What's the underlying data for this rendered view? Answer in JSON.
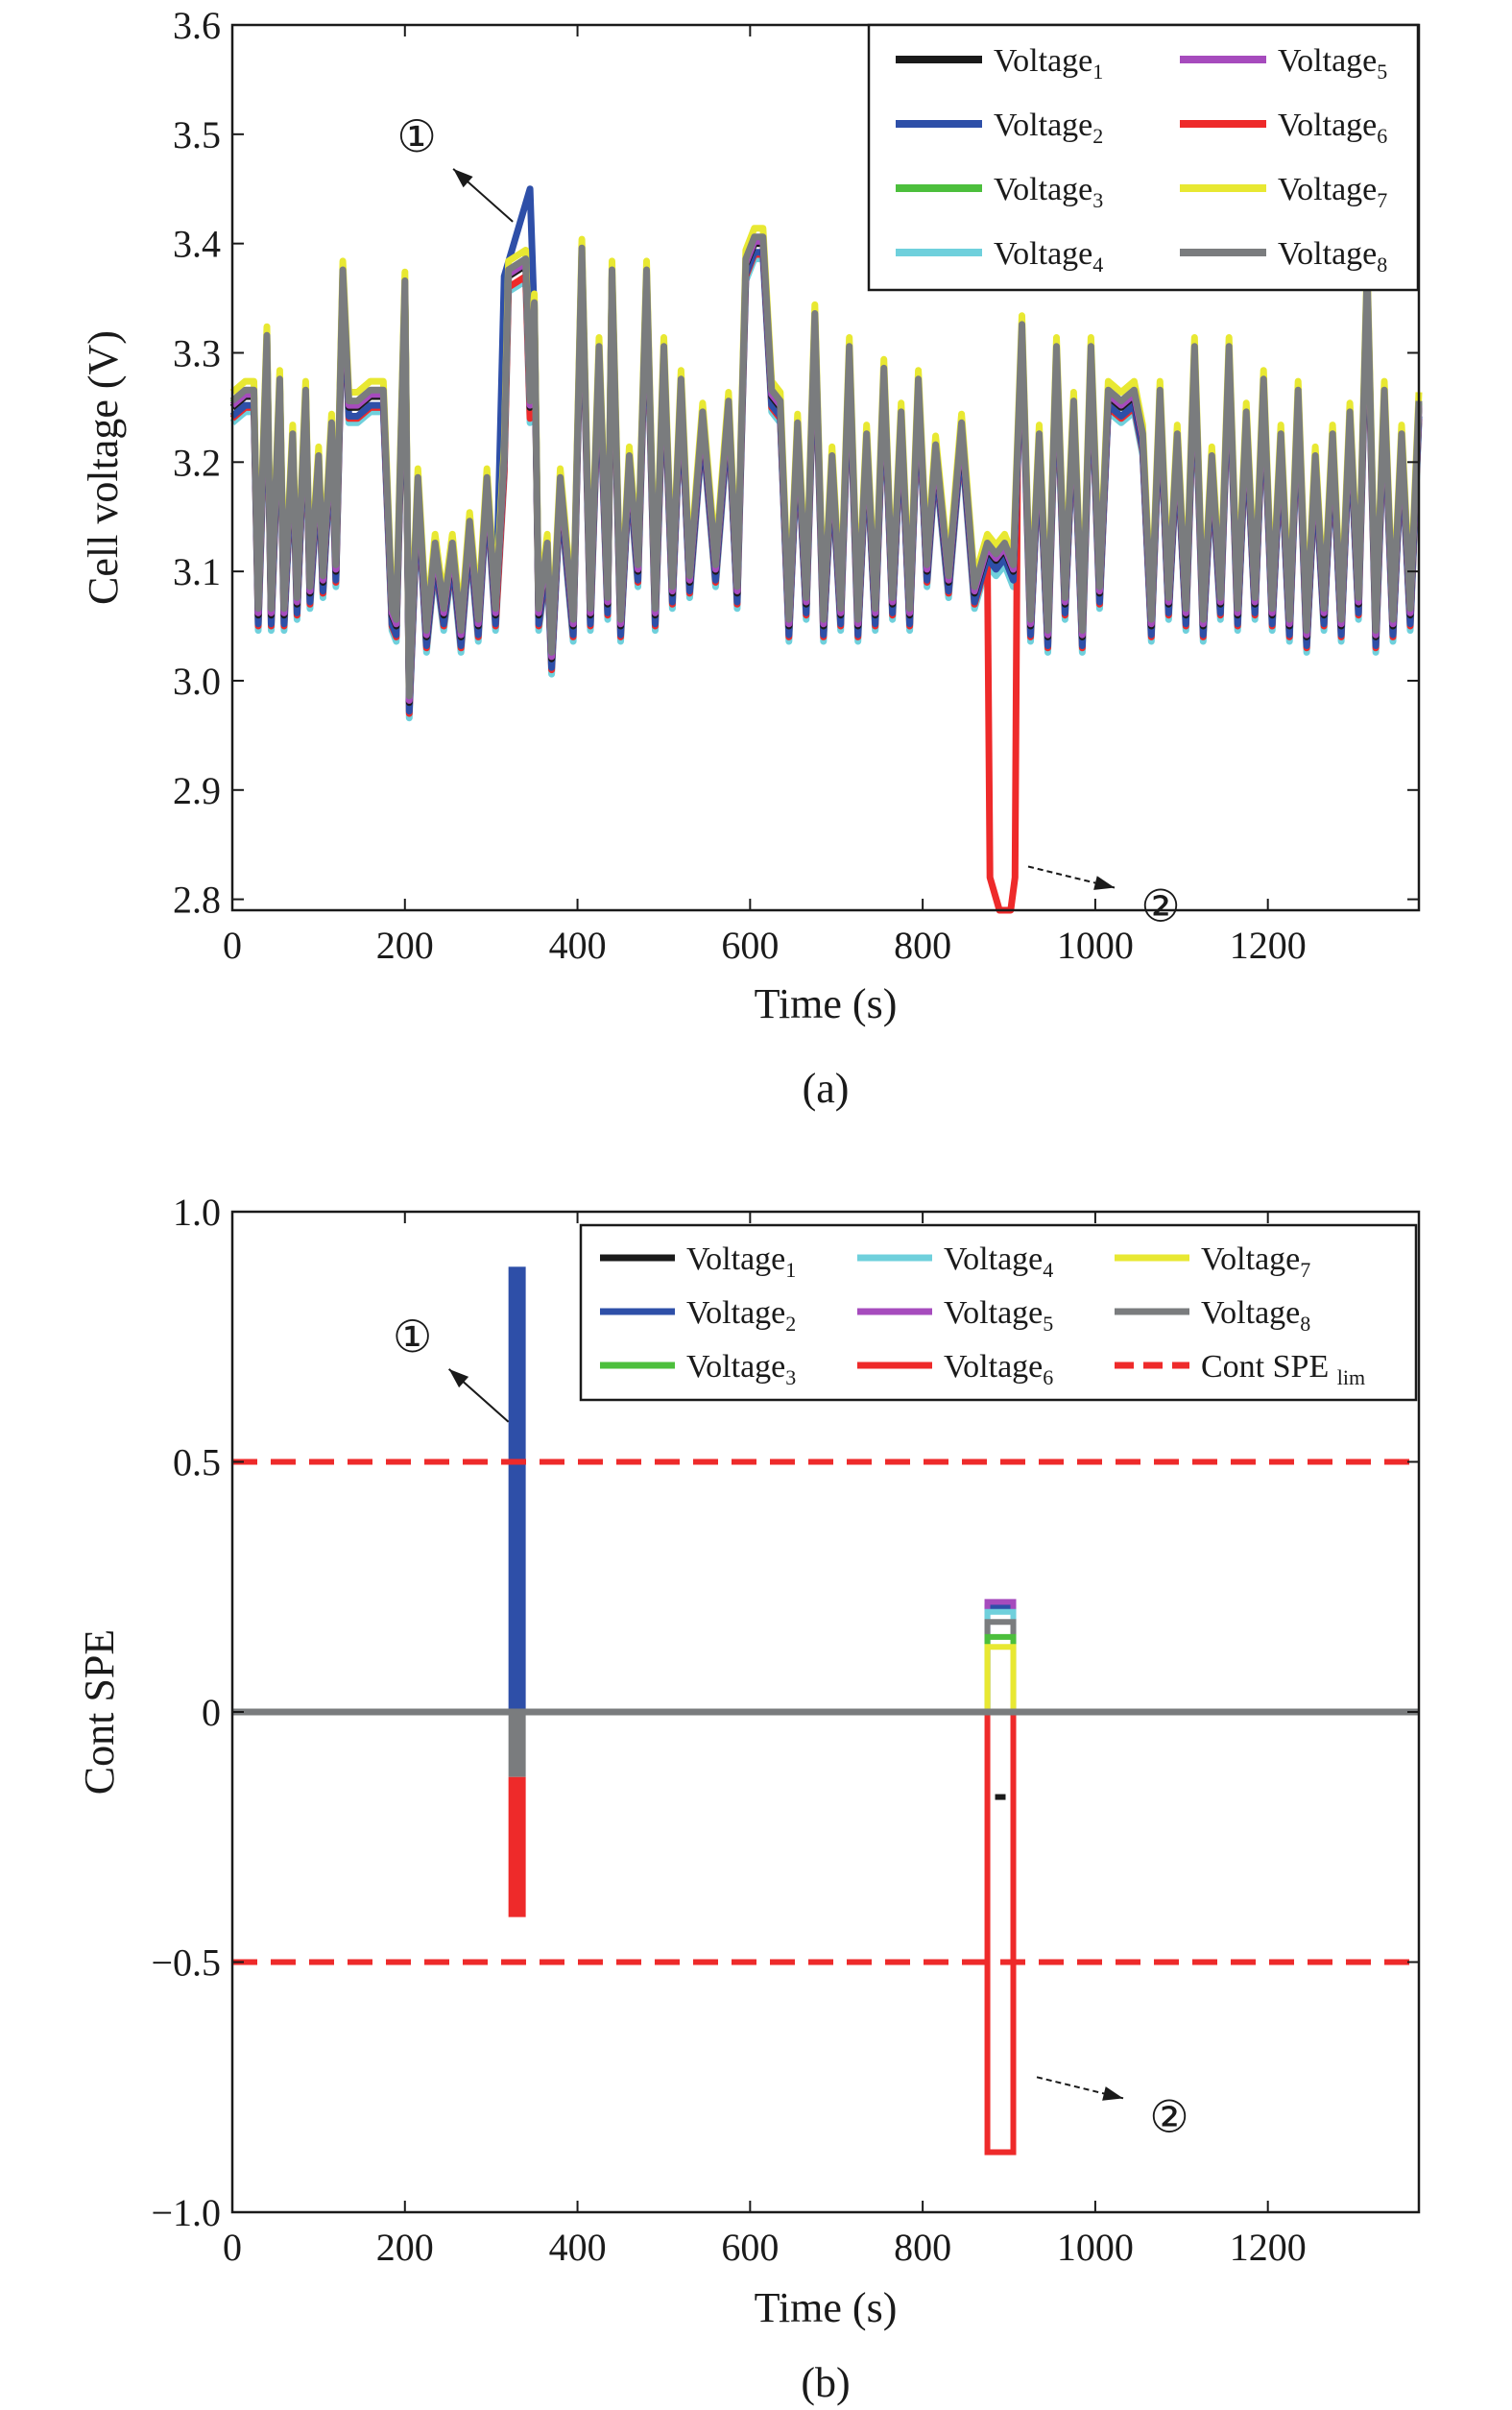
{
  "chart_data": [
    {
      "id": "a",
      "type": "line",
      "caption": "(a)",
      "xlabel": "Time (s)",
      "ylabel": "Cell voltage (V)",
      "xlim": [
        0,
        1375
      ],
      "ylim": [
        2.79,
        3.6
      ],
      "xticks": [
        0,
        200,
        400,
        600,
        800,
        1000,
        1200
      ],
      "xtick_labels": [
        "0",
        "200",
        "400",
        "600",
        "800",
        "1000",
        "1200"
      ],
      "yticks": [
        2.8,
        2.9,
        3.0,
        3.1,
        3.2,
        3.3,
        3.4,
        3.5,
        3.6
      ],
      "ytick_labels": [
        "2.8",
        "2.9",
        "3.0",
        "3.1",
        "3.2",
        "3.3",
        "3.4",
        "3.5",
        "3.6"
      ],
      "grid": false,
      "legend_position": "top-right",
      "legend_columns": 2,
      "annotations": [
        {
          "label": "①",
          "x": 325,
          "y": 3.42
        },
        {
          "label": "②",
          "x": 900,
          "y": 2.83
        }
      ],
      "base_profile": {
        "x": [
          0,
          15,
          25,
          30,
          40,
          45,
          55,
          60,
          70,
          75,
          85,
          90,
          100,
          105,
          115,
          120,
          128,
          135,
          145,
          160,
          175,
          185,
          190,
          200,
          205,
          215,
          225,
          235,
          245,
          255,
          265,
          275,
          285,
          295,
          305,
          315,
          320,
          340,
          345,
          350,
          355,
          365,
          370,
          380,
          395,
          405,
          415,
          425,
          435,
          440,
          450,
          460,
          470,
          480,
          490,
          500,
          510,
          520,
          530,
          545,
          560,
          575,
          585,
          595,
          605,
          615,
          625,
          635,
          645,
          655,
          665,
          675,
          685,
          695,
          705,
          715,
          725,
          735,
          745,
          755,
          765,
          775,
          785,
          795,
          805,
          815,
          830,
          845,
          860,
          875,
          885,
          895,
          905,
          915,
          925,
          935,
          945,
          955,
          965,
          975,
          985,
          995,
          1005,
          1015,
          1030,
          1045,
          1055,
          1065,
          1075,
          1085,
          1095,
          1105,
          1115,
          1125,
          1135,
          1145,
          1155,
          1165,
          1175,
          1185,
          1195,
          1205,
          1215,
          1225,
          1235,
          1245,
          1255,
          1265,
          1275,
          1285,
          1295,
          1305,
          1315,
          1325,
          1335,
          1345,
          1355,
          1365,
          1375
        ],
        "y": [
          3.25,
          3.26,
          3.26,
          3.06,
          3.31,
          3.06,
          3.27,
          3.06,
          3.22,
          3.07,
          3.26,
          3.08,
          3.2,
          3.09,
          3.23,
          3.1,
          3.37,
          3.25,
          3.25,
          3.26,
          3.26,
          3.06,
          3.05,
          3.36,
          2.98,
          3.18,
          3.04,
          3.12,
          3.06,
          3.12,
          3.04,
          3.14,
          3.05,
          3.18,
          3.06,
          3.2,
          3.37,
          3.38,
          3.25,
          3.34,
          3.06,
          3.12,
          3.02,
          3.18,
          3.05,
          3.39,
          3.06,
          3.3,
          3.07,
          3.37,
          3.05,
          3.2,
          3.1,
          3.37,
          3.06,
          3.3,
          3.08,
          3.27,
          3.09,
          3.24,
          3.1,
          3.25,
          3.08,
          3.38,
          3.4,
          3.4,
          3.26,
          3.25,
          3.05,
          3.23,
          3.07,
          3.33,
          3.05,
          3.2,
          3.06,
          3.3,
          3.05,
          3.22,
          3.06,
          3.28,
          3.07,
          3.24,
          3.06,
          3.27,
          3.1,
          3.21,
          3.09,
          3.23,
          3.08,
          3.12,
          3.11,
          3.12,
          3.1,
          3.32,
          3.05,
          3.22,
          3.04,
          3.3,
          3.07,
          3.25,
          3.04,
          3.3,
          3.08,
          3.26,
          3.25,
          3.26,
          3.22,
          3.05,
          3.26,
          3.07,
          3.22,
          3.06,
          3.3,
          3.05,
          3.2,
          3.07,
          3.3,
          3.06,
          3.24,
          3.07,
          3.27,
          3.06,
          3.22,
          3.05,
          3.26,
          3.04,
          3.2,
          3.06,
          3.22,
          3.05,
          3.24,
          3.07,
          3.37,
          3.04,
          3.26,
          3.05,
          3.22,
          3.06,
          3.25
        ]
      },
      "series": [
        {
          "name": "Voltage",
          "subscript": "1",
          "color": "#1a1a1a",
          "offset": 0.0
        },
        {
          "name": "Voltage",
          "subscript": "2",
          "color": "#2e4fa8",
          "offset": -0.008,
          "fault": {
            "x_start": 315,
            "x_end": 345,
            "y_start": 3.37,
            "y_end": 3.45
          }
        },
        {
          "name": "Voltage",
          "subscript": "3",
          "color": "#4cbf3c",
          "offset": 0.004
        },
        {
          "name": "Voltage",
          "subscript": "4",
          "color": "#6fd0dc",
          "offset": -0.014
        },
        {
          "name": "Voltage",
          "subscript": "5",
          "color": "#a64bbd",
          "offset": 0.002
        },
        {
          "name": "Voltage",
          "subscript": "6",
          "color": "#ee2a2a",
          "offset": -0.01,
          "fault": {
            "x_start": 875,
            "x_end": 910,
            "y_min": 2.79
          }
        },
        {
          "name": "Voltage",
          "subscript": "7",
          "color": "#e8e832",
          "offset": 0.014
        },
        {
          "name": "Voltage",
          "subscript": "8",
          "color": "#7a7c7e",
          "offset": 0.006
        }
      ]
    },
    {
      "id": "b",
      "type": "line",
      "caption": "(b)",
      "xlabel": "Time (s)",
      "ylabel": "Cont SPE",
      "xlim": [
        0,
        1375
      ],
      "ylim": [
        -1.0,
        1.0
      ],
      "xticks": [
        0,
        200,
        400,
        600,
        800,
        1000,
        1200
      ],
      "xtick_labels": [
        "0",
        "200",
        "400",
        "600",
        "800",
        "1000",
        "1200"
      ],
      "yticks": [
        -1.0,
        -0.5,
        0,
        0.5,
        1.0
      ],
      "ytick_labels": [
        "−1.0",
        "−0.5",
        "0",
        "0.5",
        "1.0"
      ],
      "grid": false,
      "legend_position": "top-right",
      "legend_columns": 3,
      "annotations": [
        {
          "label": "①",
          "x": 320,
          "y": 0.58
        },
        {
          "label": "②",
          "x": 910,
          "y": -0.73
        }
      ],
      "series": [
        {
          "name": "Voltage",
          "subscript": "1",
          "color": "#1a1a1a",
          "fault1": 0,
          "fault2": -0.17
        },
        {
          "name": "Voltage",
          "subscript": "2",
          "color": "#2e4fa8",
          "fault1": 0.89,
          "fault2": 0.21
        },
        {
          "name": "Voltage",
          "subscript": "3",
          "color": "#4cbf3c",
          "fault1": 0,
          "fault2": 0.15
        },
        {
          "name": "Voltage",
          "subscript": "4",
          "color": "#6fd0dc",
          "fault1": 0,
          "fault2": 0.2
        },
        {
          "name": "Voltage",
          "subscript": "5",
          "color": "#a64bbd",
          "fault1": 0,
          "fault2": 0.22
        },
        {
          "name": "Voltage",
          "subscript": "6",
          "color": "#ee2a2a",
          "fault1": -0.41,
          "fault2": -0.88
        },
        {
          "name": "Voltage",
          "subscript": "7",
          "color": "#e8e832",
          "fault1": 0,
          "fault2": 0.13
        },
        {
          "name": "Voltage",
          "subscript": "8",
          "color": "#7a7c7e",
          "fault1": -0.13,
          "fault2": 0.18
        }
      ],
      "fault_windows": [
        [
          320,
          340
        ],
        [
          875,
          905
        ]
      ],
      "limits": {
        "name": "Cont SPE",
        "subscript": "lim",
        "color": "#ee2a2a",
        "values": [
          0.5,
          -0.5
        ]
      }
    }
  ]
}
